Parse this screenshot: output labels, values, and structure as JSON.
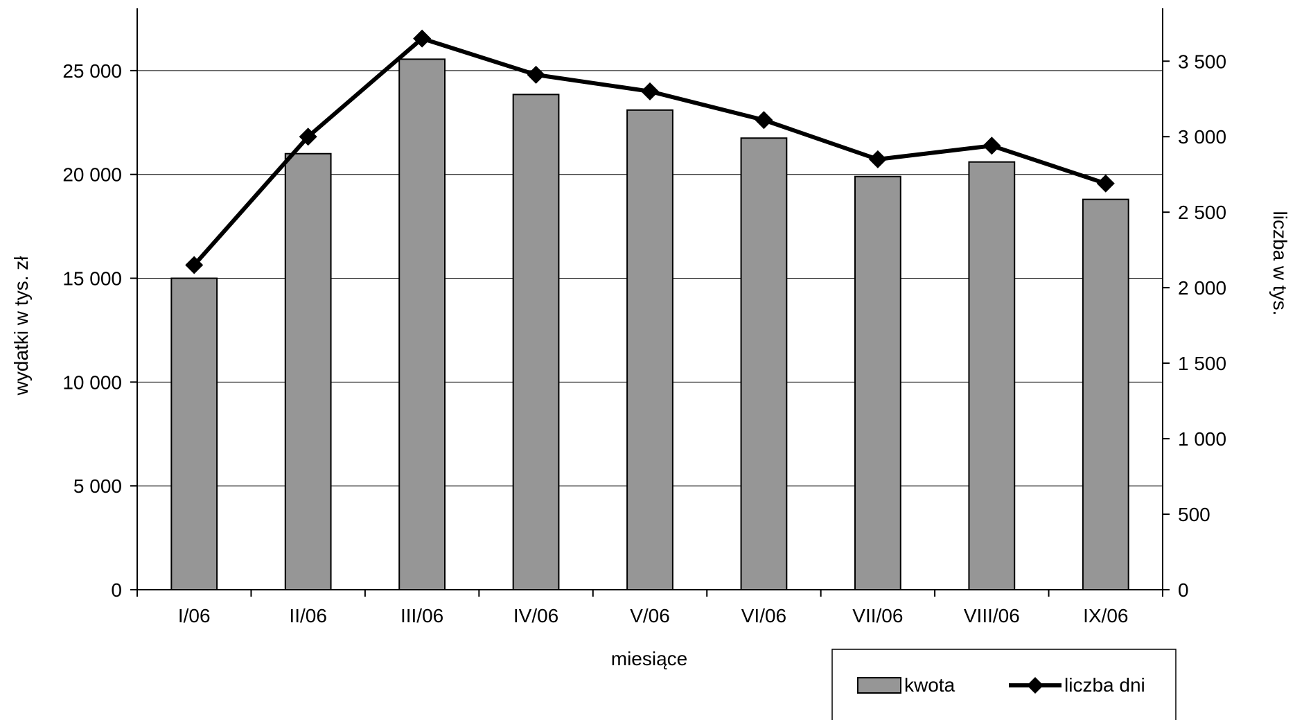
{
  "chart_data": {
    "type": "bar",
    "categories": [
      "I/06",
      "II/06",
      "III/06",
      "IV/06",
      "V/06",
      "VI/06",
      "VII/06",
      "VIII/06",
      "IX/06"
    ],
    "series": [
      {
        "name": "kwota",
        "type": "bar",
        "axis": "left",
        "color": "#969696",
        "values": [
          15000,
          21000,
          25550,
          23850,
          23100,
          21750,
          19900,
          20600,
          18800
        ]
      },
      {
        "name": "liczba dni",
        "type": "line",
        "axis": "right",
        "color": "#000000",
        "marker": "diamond",
        "values": [
          2150,
          3000,
          3650,
          3410,
          3300,
          3110,
          2850,
          2940,
          2690
        ]
      }
    ],
    "xlabel": "miesiące",
    "ylabel": "wydatki w tys. zł",
    "y2label": "liczba w tys.",
    "ylim": [
      0,
      28000
    ],
    "y2lim": [
      0,
      3850
    ],
    "yticks": [
      0,
      5000,
      10000,
      15000,
      20000,
      25000
    ],
    "ytick_labels": [
      "0",
      "5 000",
      "10 000",
      "15 000",
      "20 000",
      "25 000"
    ],
    "y2ticks": [
      0,
      500,
      1000,
      1500,
      2000,
      2500,
      3000,
      3500
    ],
    "y2tick_labels": [
      "0",
      "500",
      "1 000",
      "1 500",
      "2 000",
      "2 500",
      "3 000",
      "3 500"
    ],
    "grid": "horizontal",
    "legend": "bottom-right",
    "legend_entries": [
      "kwota",
      "liczba dni"
    ]
  }
}
